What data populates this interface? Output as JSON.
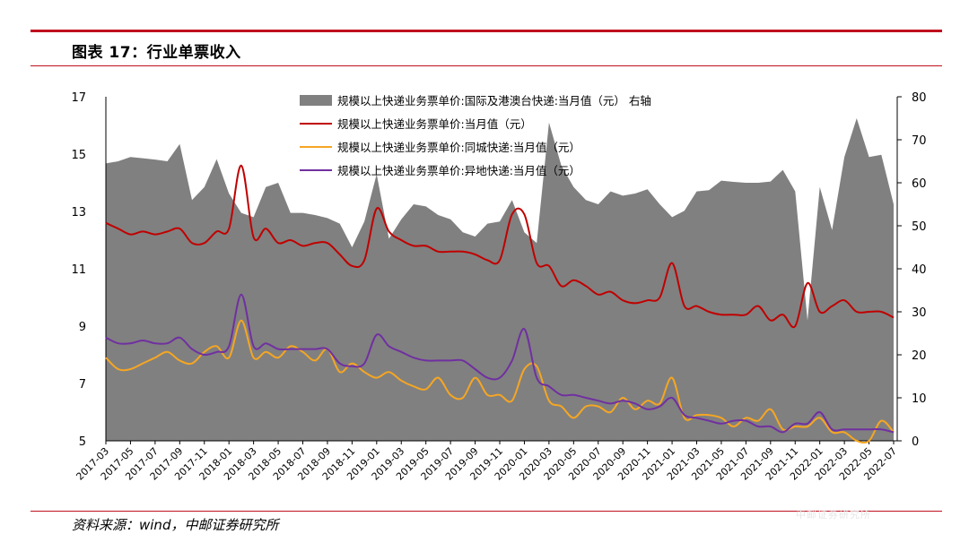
{
  "header": {
    "title": "图表 17：行业单票收入"
  },
  "footer": {
    "source": "资料来源：wind，中邮证券研究所",
    "watermark": "中邮证券研究所"
  },
  "colors": {
    "brand_red": "#c0101e",
    "area_gray": "#808080",
    "red_line": "#c00000",
    "orange_line": "#f5a623",
    "purple_line": "#7030a0"
  },
  "chart_data": {
    "type": "line",
    "title": "",
    "xlabel": "",
    "ylabel": "",
    "ylim": [
      5,
      17
    ],
    "y2lim": [
      0,
      80
    ],
    "yticks": [
      5,
      7,
      9,
      11,
      13,
      15,
      17
    ],
    "y2ticks": [
      0,
      10,
      20,
      30,
      40,
      50,
      60,
      70,
      80
    ],
    "legend_position": "top-center",
    "grid": false,
    "x": [
      "2017-03",
      "2017-04",
      "2017-05",
      "2017-06",
      "2017-07",
      "2017-08",
      "2017-09",
      "2017-10",
      "2017-11",
      "2017-12",
      "2018-01",
      "2018-02",
      "2018-03",
      "2018-04",
      "2018-05",
      "2018-06",
      "2018-07",
      "2018-08",
      "2018-09",
      "2018-10",
      "2018-11",
      "2018-12",
      "2019-01",
      "2019-02",
      "2019-03",
      "2019-04",
      "2019-05",
      "2019-06",
      "2019-07",
      "2019-08",
      "2019-09",
      "2019-10",
      "2019-11",
      "2019-12",
      "2020-01",
      "2020-02",
      "2020-03",
      "2020-04",
      "2020-05",
      "2020-06",
      "2020-07",
      "2020-08",
      "2020-09",
      "2020-10",
      "2020-11",
      "2020-12",
      "2021-01",
      "2021-02",
      "2021-03",
      "2021-04",
      "2021-05",
      "2021-06",
      "2021-07",
      "2021-08",
      "2021-09",
      "2021-10",
      "2021-11",
      "2021-12",
      "2022-01",
      "2022-02",
      "2022-03",
      "2022-04",
      "2022-05",
      "2022-06",
      "2022-07"
    ],
    "x_tick_labels": [
      "2017-03",
      "2017-05",
      "2017-07",
      "2017-09",
      "2017-11",
      "2018-01",
      "2018-03",
      "2018-05",
      "2018-07",
      "2018-09",
      "2018-11",
      "2019-01",
      "2019-03",
      "2019-05",
      "2019-07",
      "2019-09",
      "2019-11",
      "2020-01",
      "2020-03",
      "2020-05",
      "2020-07",
      "2020-09",
      "2020-11",
      "2021-01",
      "2021-03",
      "2021-05",
      "2021-07",
      "2021-09",
      "2021-11",
      "2022-01",
      "2022-03",
      "2022-05",
      "2022-07"
    ],
    "series": [
      {
        "name": "规模以上快递业务票单价:国际及港澳台快递:当月值（元）  右轴",
        "type": "area",
        "axis": "right",
        "color": "#808080",
        "values": [
          64.5,
          65,
          66,
          65.7,
          65.4,
          65,
          69,
          56,
          59,
          65.5,
          57.5,
          53,
          52,
          59,
          60,
          53,
          53,
          52.5,
          51.8,
          50.5,
          45,
          51,
          62,
          47,
          51.5,
          55,
          54.5,
          52.5,
          51.5,
          48.5,
          47.5,
          50.5,
          51,
          56,
          48.5,
          46,
          74,
          64,
          59,
          56,
          55,
          58,
          57,
          57.5,
          58.5,
          55,
          52,
          53.5,
          58,
          58.3,
          60.5,
          60.2,
          60,
          60,
          60.3,
          63,
          58,
          28,
          59,
          49,
          66,
          75,
          66,
          66.5,
          55
        ]
      },
      {
        "name": "规模以上快递业务票单价:当月值（元）",
        "type": "line",
        "axis": "left",
        "color": "#c00000",
        "values": [
          12.6,
          12.4,
          12.2,
          12.3,
          12.2,
          12.3,
          12.4,
          11.9,
          11.9,
          12.3,
          12.4,
          14.6,
          12.1,
          12.4,
          11.9,
          12,
          11.8,
          11.9,
          11.9,
          11.5,
          11.1,
          11.3,
          13.1,
          12.3,
          12,
          11.8,
          11.8,
          11.6,
          11.6,
          11.6,
          11.5,
          11.3,
          11.3,
          12.9,
          12.9,
          11.2,
          11.1,
          10.4,
          10.6,
          10.4,
          10.1,
          10.2,
          9.9,
          9.8,
          9.9,
          10,
          11.2,
          9.7,
          9.7,
          9.5,
          9.4,
          9.4,
          9.4,
          9.7,
          9.2,
          9.4,
          9,
          10.5,
          9.5,
          9.7,
          9.9,
          9.5,
          9.5,
          9.5,
          9.3
        ]
      },
      {
        "name": "规模以上快递业务票单价:同城快递:当月值（元）",
        "type": "line",
        "axis": "left",
        "color": "#f5a623",
        "values": [
          7.9,
          7.5,
          7.5,
          7.7,
          7.9,
          8.1,
          7.8,
          7.7,
          8.1,
          8.3,
          7.9,
          9.2,
          7.9,
          8.1,
          7.9,
          8.3,
          8.1,
          7.8,
          8.2,
          7.4,
          7.7,
          7.4,
          7.2,
          7.4,
          7.1,
          6.9,
          6.8,
          7.2,
          6.6,
          6.5,
          7.2,
          6.6,
          6.6,
          6.4,
          7.5,
          7.6,
          6.4,
          6.2,
          5.8,
          6.2,
          6.2,
          6,
          6.5,
          6.1,
          6.4,
          6.3,
          7.2,
          5.8,
          5.9,
          5.9,
          5.8,
          5.5,
          5.8,
          5.7,
          6.1,
          5.4,
          5.5,
          5.5,
          5.8,
          5.3,
          5.3,
          5.0,
          5.0,
          5.7,
          5.3
        ]
      },
      {
        "name": "规模以上快递业务票单价:异地快递:当月值（元）",
        "type": "line",
        "axis": "left",
        "color": "#7030a0",
        "values": [
          8.6,
          8.4,
          8.4,
          8.5,
          8.4,
          8.4,
          8.6,
          8.2,
          8.0,
          8.1,
          8.3,
          10.1,
          8.3,
          8.4,
          8.2,
          8.2,
          8.2,
          8.2,
          8.2,
          7.7,
          7.6,
          7.7,
          8.7,
          8.3,
          8.1,
          7.9,
          7.8,
          7.8,
          7.8,
          7.8,
          7.5,
          7.2,
          7.2,
          7.8,
          8.9,
          7.2,
          6.9,
          6.6,
          6.6,
          6.5,
          6.4,
          6.3,
          6.4,
          6.3,
          6.1,
          6.2,
          6.5,
          5.9,
          5.8,
          5.7,
          5.6,
          5.7,
          5.7,
          5.5,
          5.5,
          5.3,
          5.6,
          5.6,
          6.0,
          5.4,
          5.4,
          5.4,
          5.4,
          5.4,
          5.3
        ]
      }
    ]
  }
}
